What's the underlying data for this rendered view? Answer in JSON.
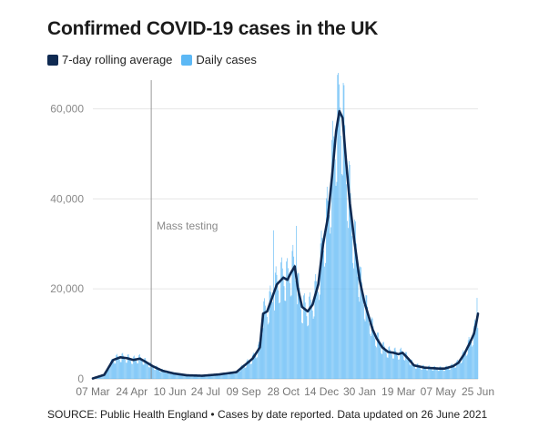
{
  "title": "Confirmed COVID-19 cases in the UK",
  "legend": [
    {
      "label": "7-day rolling average",
      "color": "#0f2a52"
    },
    {
      "label": "Daily cases",
      "color": "#5cb8f5"
    }
  ],
  "source": "SOURCE: Public Health England • Cases by date reported. Data updated on 26 June 2021",
  "chart_data": {
    "type": "bar",
    "title": "Confirmed COVID-19 cases in the UK",
    "x_start": "2020-03-07",
    "x_end": "2021-06-25",
    "ylim": [
      0,
      68000
    ],
    "y_ticks": [
      0,
      20000,
      40000,
      60000
    ],
    "y_tick_labels": [
      "0",
      "20,000",
      "40,000",
      "60,000"
    ],
    "x_tick_labels": [
      {
        "date": "2020-03-07",
        "label": "07 Mar"
      },
      {
        "date": "2020-04-24",
        "label": "24 Apr"
      },
      {
        "date": "2020-06-10",
        "label": "10 Jun"
      },
      {
        "date": "2020-07-24",
        "label": "24 Jul"
      },
      {
        "date": "2020-09-09",
        "label": "09 Sep"
      },
      {
        "date": "2020-10-28",
        "label": "28 Oct"
      },
      {
        "date": "2020-12-14",
        "label": "14 Dec"
      },
      {
        "date": "2021-01-30",
        "label": "30 Jan"
      },
      {
        "date": "2021-03-19",
        "label": "19 Mar"
      },
      {
        "date": "2021-05-07",
        "label": "07 May"
      },
      {
        "date": "2021-06-25",
        "label": "25 Jun"
      }
    ],
    "annotation": {
      "date": "2020-05-18",
      "label": "Mass testing"
    },
    "grid": true,
    "series": [
      {
        "name": "7-day rolling average",
        "type": "line",
        "color": "#0f2a52",
        "points": [
          [
            "2020-03-07",
            100
          ],
          [
            "2020-03-21",
            900
          ],
          [
            "2020-04-01",
            4200
          ],
          [
            "2020-04-10",
            4800
          ],
          [
            "2020-04-18",
            4600
          ],
          [
            "2020-04-26",
            4200
          ],
          [
            "2020-05-04",
            4500
          ],
          [
            "2020-05-10",
            3900
          ],
          [
            "2020-05-20",
            2800
          ],
          [
            "2020-06-01",
            1800
          ],
          [
            "2020-06-15",
            1200
          ],
          [
            "2020-07-01",
            800
          ],
          [
            "2020-07-20",
            700
          ],
          [
            "2020-08-10",
            1000
          ],
          [
            "2020-08-31",
            1500
          ],
          [
            "2020-09-10",
            3000
          ],
          [
            "2020-09-20",
            4500
          ],
          [
            "2020-09-29",
            7000
          ],
          [
            "2020-10-03",
            14500
          ],
          [
            "2020-10-08",
            15000
          ],
          [
            "2020-10-13",
            17500
          ],
          [
            "2020-10-20",
            21000
          ],
          [
            "2020-10-28",
            22500
          ],
          [
            "2020-11-02",
            22000
          ],
          [
            "2020-11-06",
            23500
          ],
          [
            "2020-11-11",
            25000
          ],
          [
            "2020-11-15",
            20000
          ],
          [
            "2020-11-20",
            16000
          ],
          [
            "2020-11-27",
            15000
          ],
          [
            "2020-12-03",
            16500
          ],
          [
            "2020-12-10",
            21000
          ],
          [
            "2020-12-16",
            30000
          ],
          [
            "2020-12-22",
            36000
          ],
          [
            "2020-12-27",
            45000
          ],
          [
            "2021-01-01",
            55000
          ],
          [
            "2021-01-05",
            59500
          ],
          [
            "2021-01-09",
            58000
          ],
          [
            "2021-01-13",
            49000
          ],
          [
            "2021-01-18",
            39000
          ],
          [
            "2021-01-24",
            30000
          ],
          [
            "2021-01-30",
            22000
          ],
          [
            "2021-02-05",
            17000
          ],
          [
            "2021-02-10",
            14000
          ],
          [
            "2021-02-15",
            11000
          ],
          [
            "2021-02-20",
            9000
          ],
          [
            "2021-02-27",
            7000
          ],
          [
            "2021-03-06",
            6000
          ],
          [
            "2021-03-13",
            5800
          ],
          [
            "2021-03-19",
            5500
          ],
          [
            "2021-03-24",
            5800
          ],
          [
            "2021-03-31",
            4500
          ],
          [
            "2021-04-07",
            3000
          ],
          [
            "2021-04-20",
            2500
          ],
          [
            "2021-05-07",
            2300
          ],
          [
            "2021-05-15",
            2300
          ],
          [
            "2021-05-25",
            2800
          ],
          [
            "2021-06-01",
            3600
          ],
          [
            "2021-06-08",
            5500
          ],
          [
            "2021-06-15",
            8000
          ],
          [
            "2021-06-20",
            10000
          ],
          [
            "2021-06-23",
            12500
          ],
          [
            "2021-06-25",
            14500
          ]
        ]
      },
      {
        "name": "Daily cases",
        "type": "bar",
        "color": "#5cb8f5",
        "note": "daily values follow the rolling average with weekly variation; notable peaks listed",
        "peaks": [
          [
            "2020-10-16",
            33000
          ],
          [
            "2020-11-13",
            34000
          ],
          [
            "2021-01-04",
            68000
          ],
          [
            "2021-06-24",
            18000
          ]
        ]
      }
    ]
  }
}
